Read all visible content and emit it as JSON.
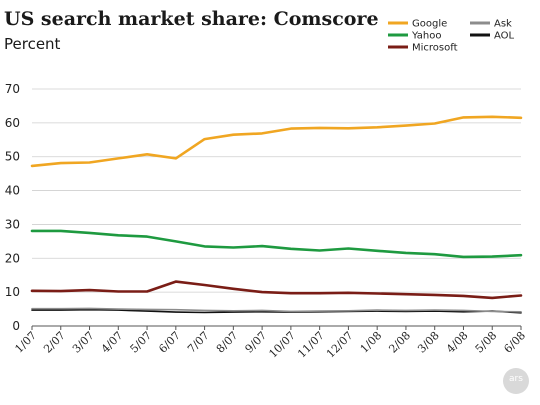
{
  "chart_data": {
    "type": "line",
    "title": "US search market share: Comscore",
    "subtitle": "Percent",
    "xlabel": "",
    "ylabel": "",
    "ylim": [
      0,
      70
    ],
    "yticks": [
      0,
      10,
      20,
      30,
      40,
      50,
      60,
      70
    ],
    "grid": "horizontal",
    "legend_position": "top-right",
    "categories": [
      "1/07",
      "2/07",
      "3/07",
      "4/07",
      "5/07",
      "6/07",
      "7/07",
      "8/07",
      "9/07",
      "10/07",
      "11/07",
      "12/07",
      "1/08",
      "2/08",
      "3/08",
      "4/08",
      "5/08",
      "6/08"
    ],
    "series": [
      {
        "name": "Google",
        "color": "#f0a622",
        "values": [
          47.3,
          48.1,
          48.3,
          49.5,
          50.7,
          49.5,
          55.2,
          56.5,
          56.9,
          58.3,
          58.5,
          58.4,
          58.7,
          59.2,
          59.8,
          61.6,
          61.8,
          61.5
        ]
      },
      {
        "name": "Yahoo",
        "color": "#1e9a40",
        "values": [
          28.1,
          28.1,
          27.5,
          26.8,
          26.4,
          25.0,
          23.5,
          23.2,
          23.6,
          22.8,
          22.3,
          22.9,
          22.2,
          21.6,
          21.2,
          20.4,
          20.5,
          20.9
        ]
      },
      {
        "name": "Microsoft",
        "color": "#7a1d16",
        "values": [
          10.4,
          10.3,
          10.6,
          10.2,
          10.2,
          13.1,
          12.1,
          11.0,
          10.0,
          9.7,
          9.7,
          9.8,
          9.6,
          9.4,
          9.2,
          8.9,
          8.3,
          9.0
        ]
      },
      {
        "name": "Ask",
        "color": "#8c8c8c",
        "values": [
          5.1,
          5.1,
          5.2,
          5.0,
          4.9,
          4.8,
          4.6,
          4.5,
          4.6,
          4.3,
          4.4,
          4.5,
          4.7,
          4.6,
          4.7,
          4.6,
          4.3,
          4.2
        ]
      },
      {
        "name": "AOL",
        "color": "#111111",
        "values": [
          4.7,
          4.7,
          4.8,
          4.7,
          4.4,
          4.1,
          4.0,
          4.1,
          4.2,
          4.1,
          4.2,
          4.3,
          4.4,
          4.3,
          4.4,
          4.2,
          4.4,
          3.9
        ]
      }
    ]
  },
  "watermark": "ars"
}
